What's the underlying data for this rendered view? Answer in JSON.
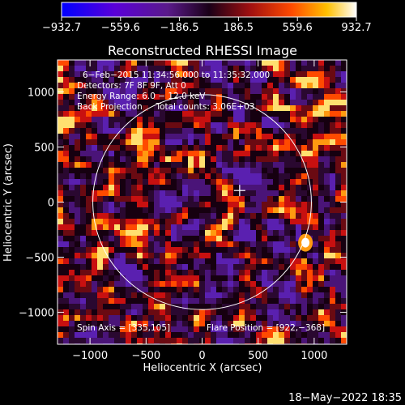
{
  "chart_data": {
    "type": "heatmap",
    "title": "Reconstructed RHESSI Image",
    "xlabel": "Heliocentric X (arcsec)",
    "ylabel": "Heliocentric Y (arcsec)",
    "xlim": [
      -1290,
      1290
    ],
    "ylim": [
      -1290,
      1290
    ],
    "xticks": [
      -1000,
      -500,
      0,
      500,
      1000
    ],
    "yticks": [
      -1000,
      -500,
      0,
      500,
      1000
    ],
    "xtick_labels": [
      "−1000",
      "−500",
      "0",
      "500",
      "1000"
    ],
    "ytick_labels": [
      "−1000",
      "−500",
      "0",
      "500",
      "1000"
    ],
    "colorbar": {
      "range": [
        -932.7,
        932.7
      ],
      "ticks": [
        -932.7,
        -559.6,
        -186.5,
        186.5,
        559.6,
        932.7
      ],
      "tick_labels": [
        "−932.7",
        "−559.6",
        "−186.5",
        "186.5",
        "559.6",
        "932.7"
      ],
      "colors": [
        "#0000ff",
        "#6a00c8",
        "#3a0a3a",
        "#c01010",
        "#ff6a00",
        "#ffffff"
      ]
    },
    "annotations": [
      "6−Feb−2015 11:34:56.000 to 11:35:32.000",
      "Detectors: 7F 8F 9F, Att 0",
      "Energy Range: 6.0 − 12.0 keV",
      "Back Projection     Total counts: 3.06E+03",
      "Spin Axis = [335,105]",
      "Flare Position = [922,−368]"
    ],
    "solar_disk": {
      "center": [
        0,
        0
      ],
      "radius": 975
    },
    "spin_axis": [
      335,
      105
    ],
    "flare_position": [
      922,
      -368
    ],
    "grid": false
  },
  "footer": {
    "timestamp": "18−May−2022 18:35"
  }
}
